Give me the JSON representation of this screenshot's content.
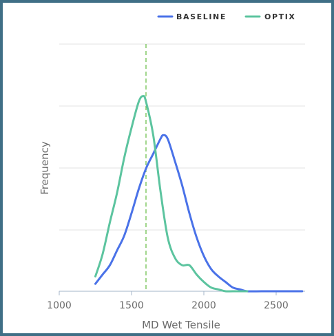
{
  "chart_data": {
    "type": "line",
    "title": "",
    "xlabel": "MD Wet Tensile",
    "ylabel": "Frequency",
    "xlim": [
      1000,
      2700
    ],
    "ylim": [
      0,
      1.0
    ],
    "x_ticks": [
      "1000",
      "1500",
      "2000",
      "2500"
    ],
    "grid": "horizontal",
    "legend_position": "top-right",
    "reference_line": {
      "x": 1600,
      "style": "dashed",
      "color": "#6fbf4f"
    },
    "series": [
      {
        "name": "BASELINE",
        "color": "#4a72e8",
        "points": [
          [
            1250,
            0.04
          ],
          [
            1300,
            0.09
          ],
          [
            1350,
            0.14
          ],
          [
            1400,
            0.22
          ],
          [
            1450,
            0.3
          ],
          [
            1500,
            0.42
          ],
          [
            1550,
            0.55
          ],
          [
            1600,
            0.66
          ],
          [
            1650,
            0.74
          ],
          [
            1700,
            0.82
          ],
          [
            1720,
            0.84
          ],
          [
            1750,
            0.82
          ],
          [
            1800,
            0.7
          ],
          [
            1850,
            0.57
          ],
          [
            1900,
            0.42
          ],
          [
            1950,
            0.29
          ],
          [
            2000,
            0.19
          ],
          [
            2050,
            0.12
          ],
          [
            2100,
            0.08
          ],
          [
            2150,
            0.05
          ],
          [
            2200,
            0.02
          ],
          [
            2250,
            0.01
          ],
          [
            2300,
            0.0
          ],
          [
            2400,
            0.0
          ],
          [
            2500,
            0.0
          ],
          [
            2600,
            0.0
          ],
          [
            2680,
            0.0
          ]
        ]
      },
      {
        "name": "OPTIX",
        "color": "#5cc49f",
        "points": [
          [
            1250,
            0.08
          ],
          [
            1300,
            0.2
          ],
          [
            1350,
            0.37
          ],
          [
            1400,
            0.53
          ],
          [
            1450,
            0.72
          ],
          [
            1500,
            0.88
          ],
          [
            1550,
            1.02
          ],
          [
            1580,
            1.05
          ],
          [
            1600,
            1.02
          ],
          [
            1650,
            0.84
          ],
          [
            1700,
            0.54
          ],
          [
            1750,
            0.29
          ],
          [
            1800,
            0.18
          ],
          [
            1850,
            0.14
          ],
          [
            1900,
            0.14
          ],
          [
            1950,
            0.09
          ],
          [
            2000,
            0.05
          ],
          [
            2050,
            0.02
          ],
          [
            2100,
            0.01
          ],
          [
            2150,
            0.0
          ],
          [
            2200,
            0.0
          ],
          [
            2300,
            0.0
          ]
        ]
      }
    ]
  }
}
